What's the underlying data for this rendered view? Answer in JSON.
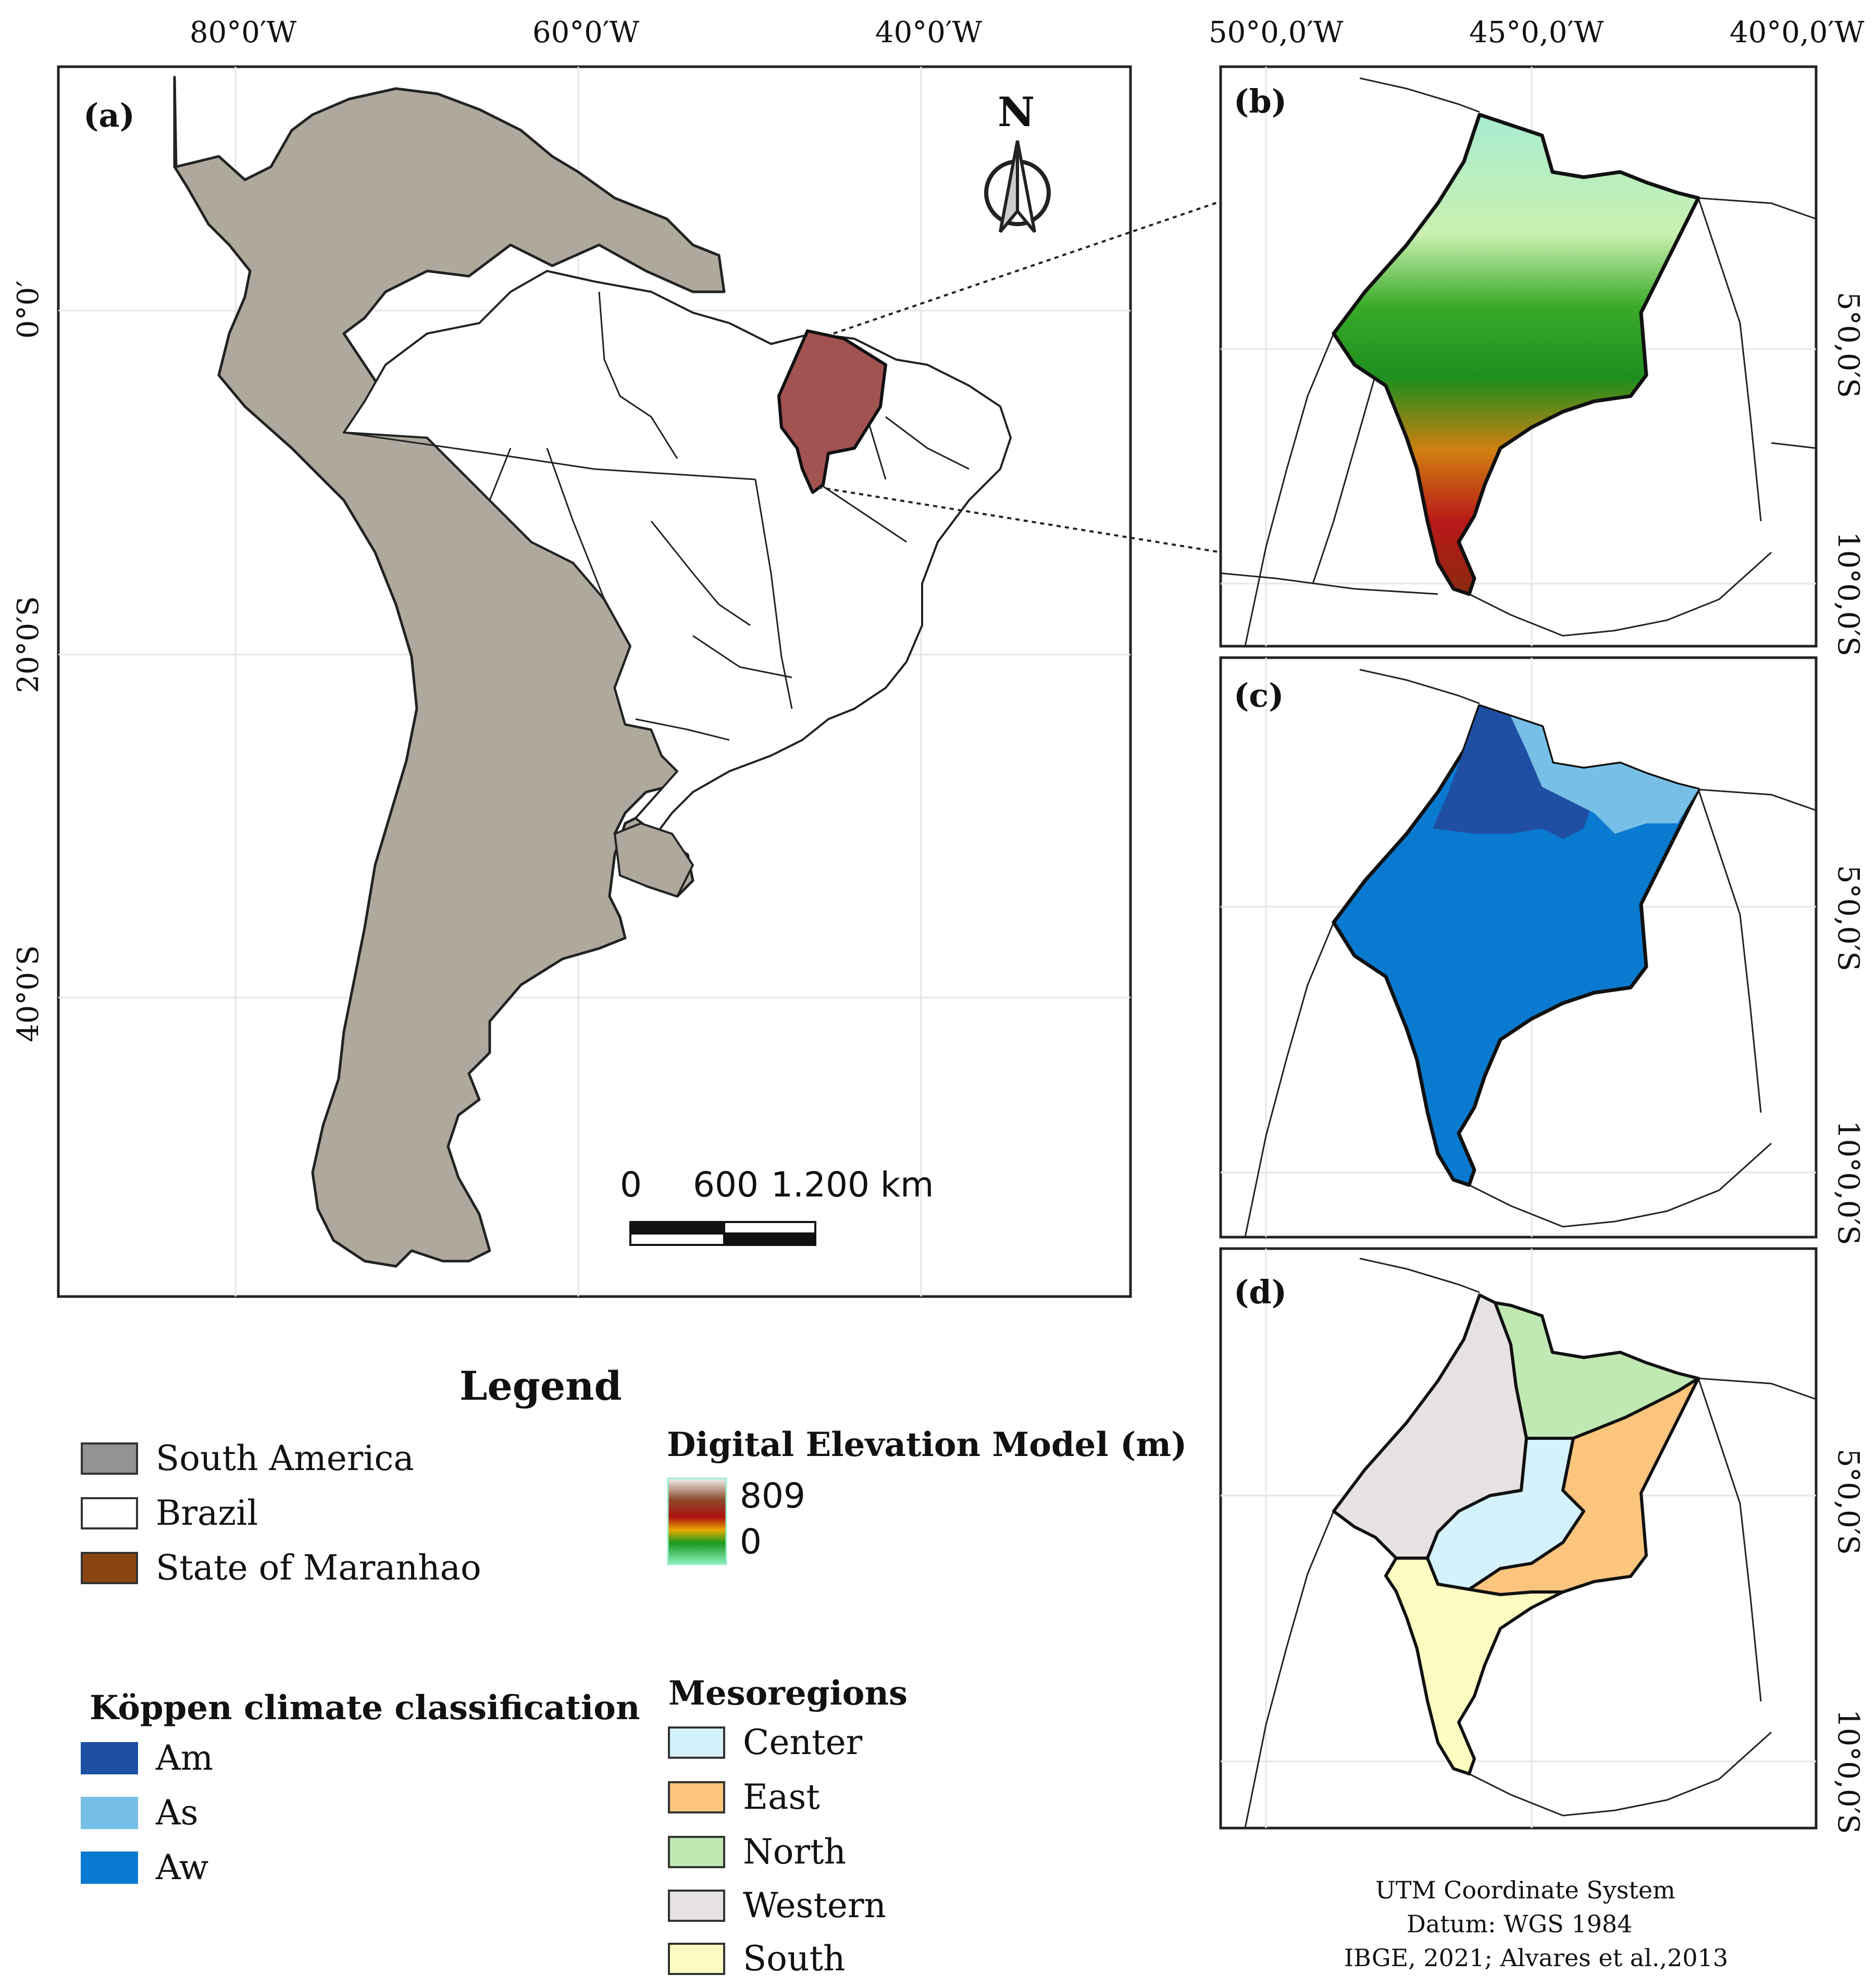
{
  "panel_a": {
    "label": "(a)",
    "top_ticks": [
      "80°0′W",
      "60°0′W",
      "40°0′W"
    ],
    "left_ticks": [
      "0°0′",
      "20°0′S",
      "40°0′S"
    ],
    "north_label": "N",
    "scale_labels": [
      "0",
      "600",
      "1.200 km"
    ]
  },
  "panel_b": {
    "label": "(b)"
  },
  "panel_c": {
    "label": "(c)"
  },
  "panel_d": {
    "label": "(d)"
  },
  "right_top_ticks": [
    "50°0,0′W",
    "45°0,0′W",
    "40°0,0′W"
  ],
  "right_side_ticks": [
    "5°0,0′S",
    "10°0,0′S"
  ],
  "legend": {
    "title": "Legend",
    "base": [
      {
        "label": "South America",
        "color": "#939393"
      },
      {
        "label": "Brazil",
        "color": "#ffffff"
      },
      {
        "label": "State of Maranhao",
        "color": "#8b4513"
      }
    ],
    "dem_title": "Digital Elevation Model (m)",
    "dem_max": "809",
    "dem_min": "0",
    "koppen_title": "Köppen climate classification",
    "koppen": [
      {
        "label": "Am",
        "color": "#1f4fa3"
      },
      {
        "label": "As",
        "color": "#77bfe6"
      },
      {
        "label": "Aw",
        "color": "#0a7ad1"
      }
    ],
    "meso_title": "Mesoregions",
    "meso": [
      {
        "label": "Center",
        "color": "#d4f2fb"
      },
      {
        "label": "East",
        "color": "#fbc57e"
      },
      {
        "label": "North",
        "color": "#bfe8b2"
      },
      {
        "label": "Western",
        "color": "#e6e2e2"
      },
      {
        "label": "South",
        "color": "#fdfcc0"
      }
    ]
  },
  "footer": {
    "line1": "UTM Coordinate System",
    "line2": "Datum: WGS 1984",
    "line3": "IBGE, 2021; Alvares et al.,2013"
  },
  "colors": {
    "south_america": "#aea99c",
    "maranhao": "#a35252",
    "am": "#1f4fa3",
    "as": "#77bfe6",
    "aw": "#0a7ad1"
  }
}
